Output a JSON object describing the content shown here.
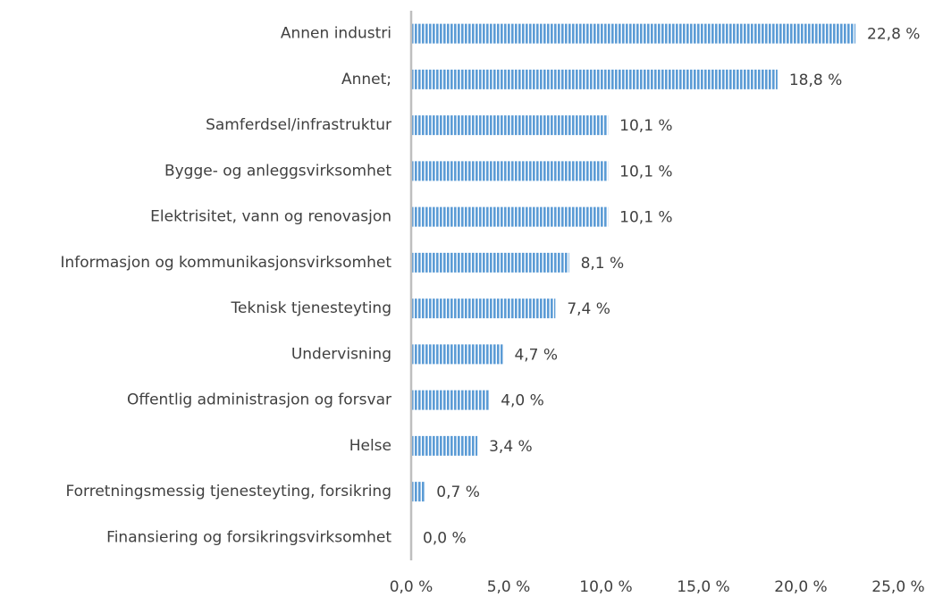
{
  "chart_data": {
    "type": "hbar",
    "categories": [
      "Annen industri",
      "Annet;",
      "Samferdsel/infrastruktur",
      "Bygge- og anleggsvirksomhet",
      "Elektrisitet, vann og renovasjon",
      "Informasjon og kommunikasjonsvirksomhet",
      "Teknisk tjenesteyting",
      "Undervisning",
      "Offentlig administrasjon og forsvar",
      "Helse",
      "Forretningsmessig tjenesteyting, forsikring",
      "Finansiering og forsikringsvirksomhet"
    ],
    "values": [
      22.8,
      18.8,
      10.1,
      10.1,
      10.1,
      8.1,
      7.4,
      4.7,
      4.0,
      3.4,
      0.7,
      0.0
    ],
    "value_labels": [
      "22,8 %",
      "18,8 %",
      "10,1 %",
      "10,1 %",
      "10,1 %",
      "8,1 %",
      "7,4 %",
      "4,7 %",
      "4,0 %",
      "3,4 %",
      "0,7 %",
      "0,0 %"
    ],
    "color": "#5b9bd5",
    "xlim": [
      0,
      25
    ],
    "xticks": [
      {
        "value": 0,
        "label": "0,0 %"
      },
      {
        "value": 5,
        "label": "5,0 %"
      },
      {
        "value": 10,
        "label": "10,0 %"
      },
      {
        "value": 15,
        "label": "15,0 %"
      },
      {
        "value": 20,
        "label": "20,0 %"
      },
      {
        "value": 25,
        "label": "25,0 %"
      }
    ]
  }
}
